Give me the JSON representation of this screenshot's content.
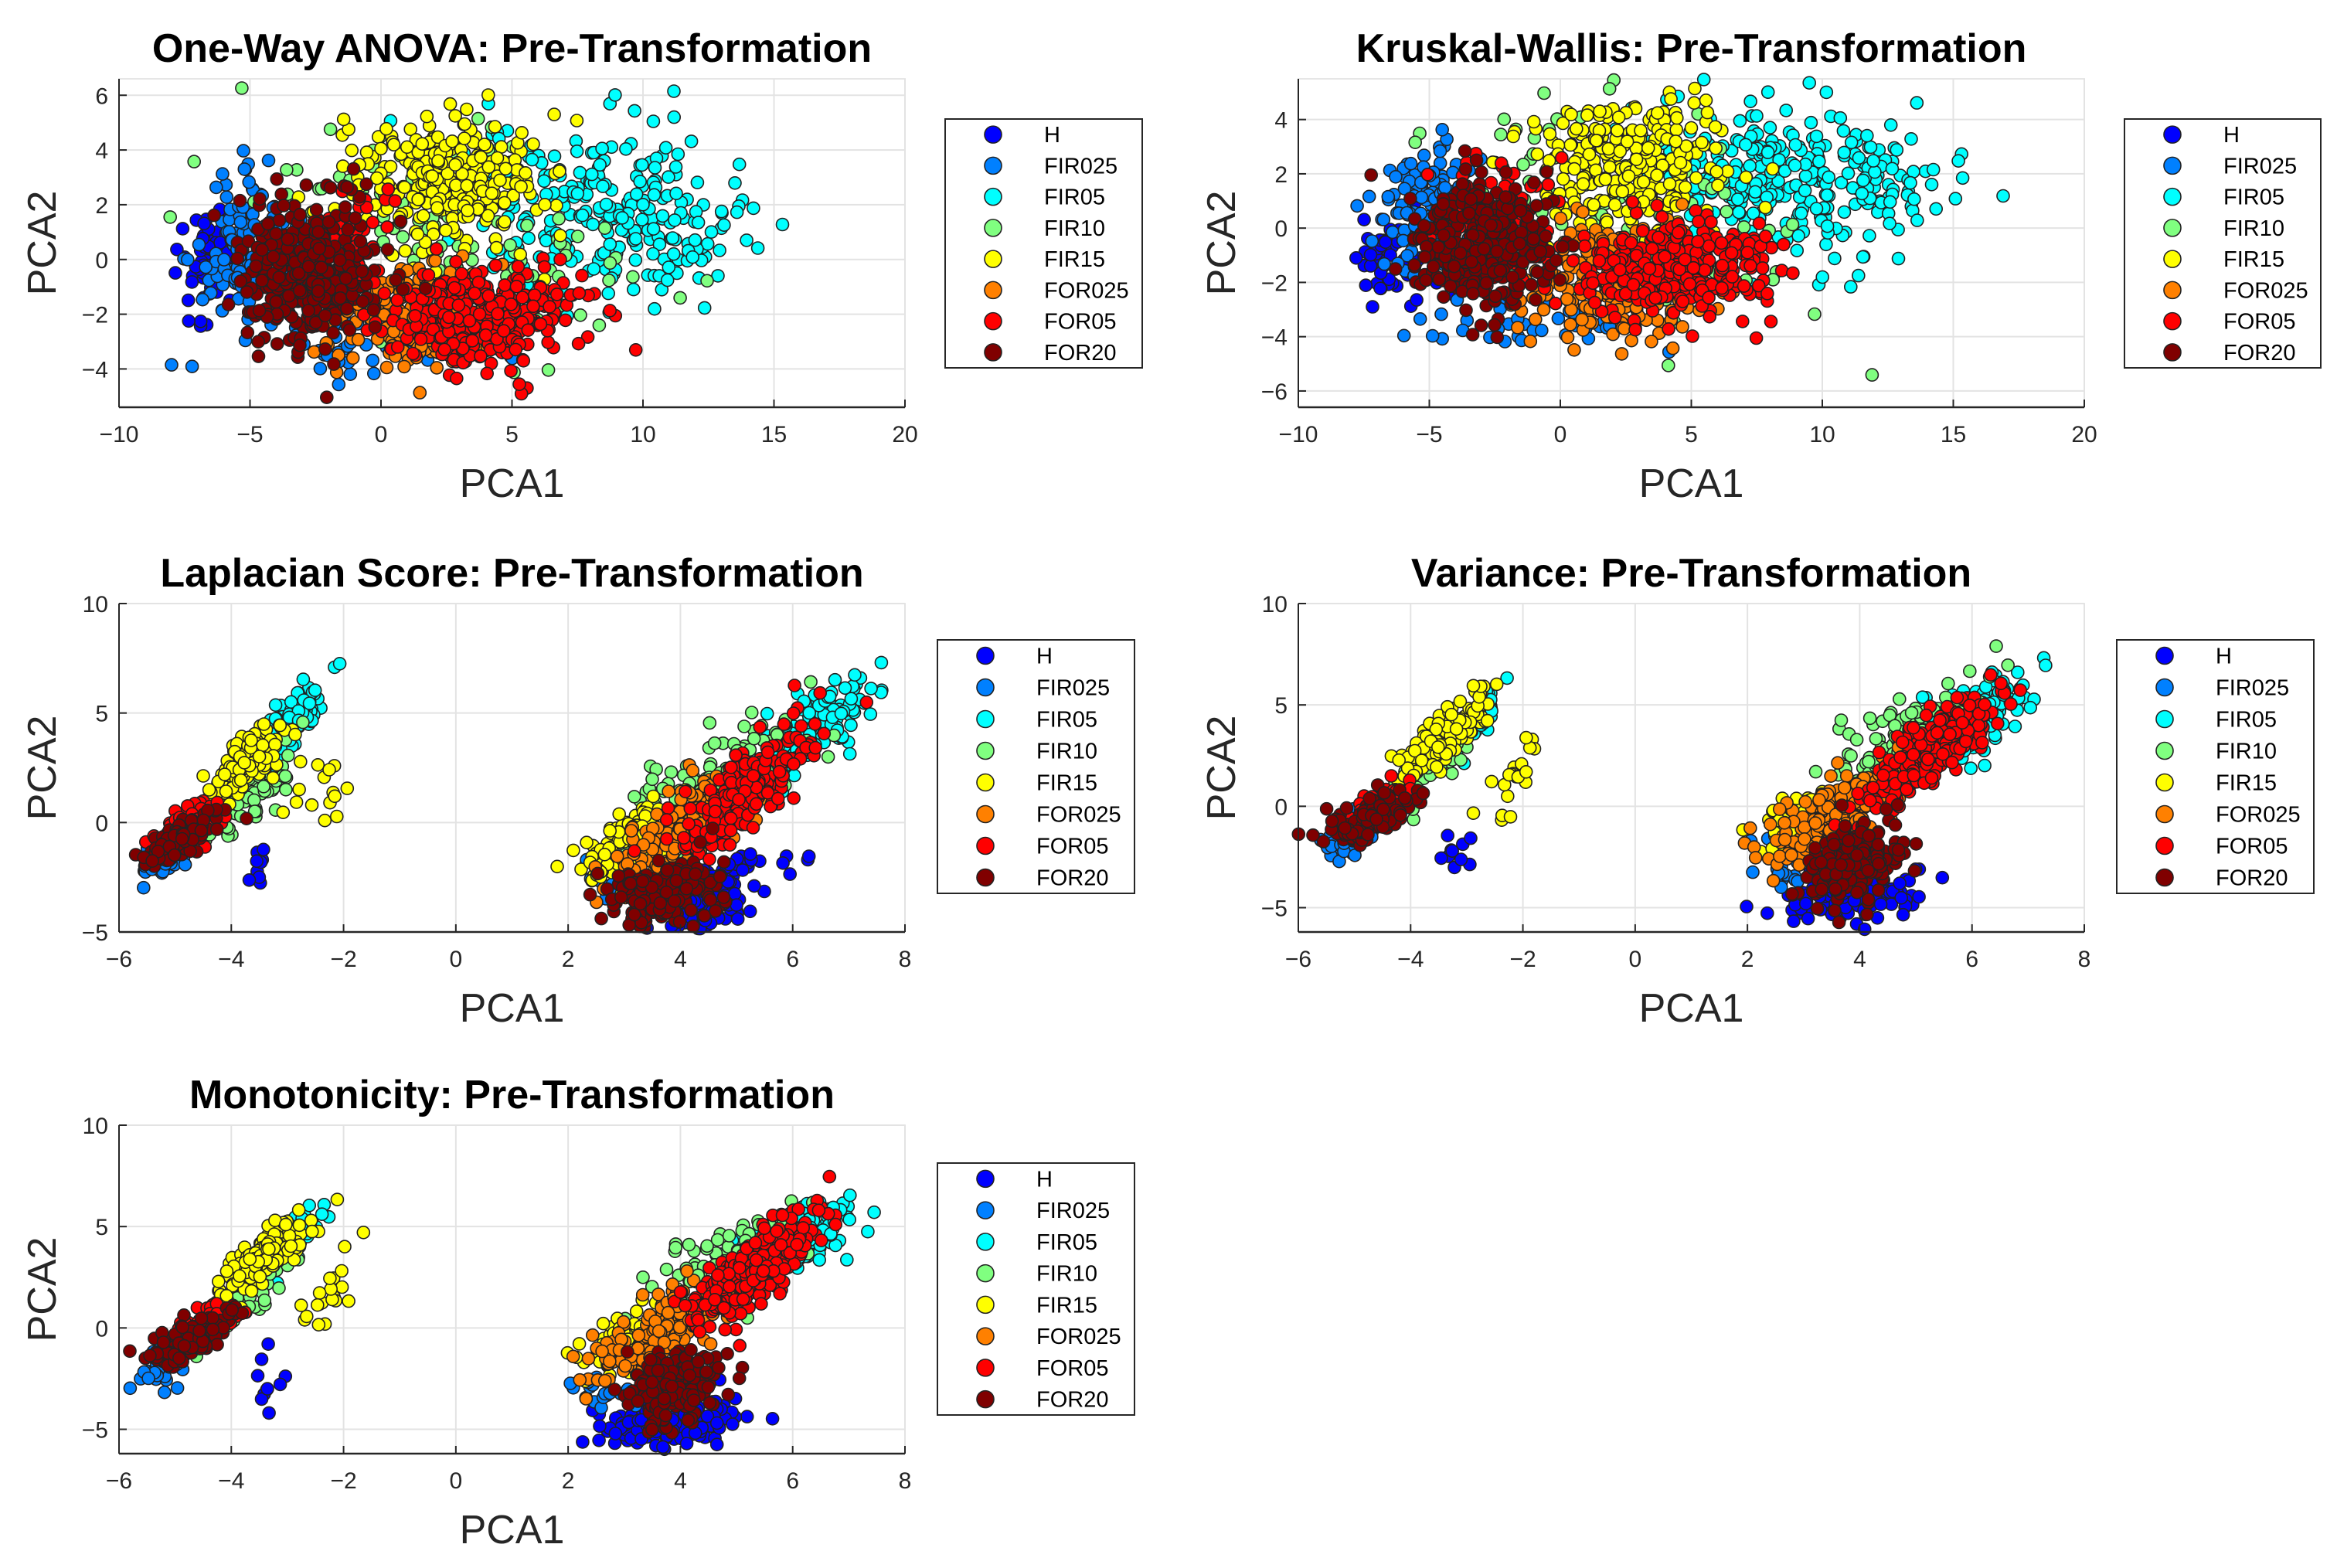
{
  "chart_data": {
    "type": "scatter",
    "legend_placement": "right-outside",
    "grid": true,
    "classes": [
      {
        "name": "H",
        "color": "#0000ff"
      },
      {
        "name": "FIR025",
        "color": "#0080ff"
      },
      {
        "name": "FIR05",
        "color": "#00ffff"
      },
      {
        "name": "FIR10",
        "color": "#80ff80"
      },
      {
        "name": "FIR15",
        "color": "#ffff00"
      },
      {
        "name": "FOR025",
        "color": "#ff8000"
      },
      {
        "name": "FOR05",
        "color": "#ff0000"
      },
      {
        "name": "FOR20",
        "color": "#800000"
      }
    ],
    "cluster_format": [
      "class_index",
      "mean_x",
      "mean_y",
      "sd_x",
      "sd_y",
      "correlation",
      "count"
    ],
    "charts": [
      {
        "title": "One-Way ANOVA: Pre-Transformation",
        "xlabel": "PCA1",
        "ylabel": "PCA2",
        "xlim": [
          -10,
          20
        ],
        "ylim": [
          -5.4,
          6.6
        ],
        "xticks": [
          -10,
          -5,
          0,
          5,
          10,
          15,
          20
        ],
        "yticks": [
          -4,
          -2,
          0,
          2,
          4,
          6
        ],
        "clusters": [
          [
            0,
            -6.6,
            -0.6,
            0.6,
            1.1,
            0,
            60
          ],
          [
            1,
            -5.2,
            0.6,
            1.0,
            1.4,
            0,
            120
          ],
          [
            1,
            -1.5,
            -3.3,
            2.5,
            0.5,
            0,
            40
          ],
          [
            2,
            9.2,
            1.6,
            2.3,
            1.5,
            0,
            220
          ],
          [
            2,
            5.0,
            2.5,
            1.5,
            1.5,
            0,
            60
          ],
          [
            3,
            2.5,
            0.5,
            3.5,
            2.2,
            -0.3,
            120
          ],
          [
            4,
            2.6,
            2.9,
            1.8,
            1.2,
            0,
            280
          ],
          [
            5,
            1.0,
            -2.0,
            1.7,
            1.1,
            0,
            200
          ],
          [
            6,
            4.2,
            -2.0,
            1.9,
            0.9,
            0,
            300
          ],
          [
            6,
            -1.0,
            0.5,
            0.8,
            1.2,
            0,
            40
          ],
          [
            7,
            -2.8,
            -0.5,
            1.3,
            1.3,
            0,
            360
          ]
        ]
      },
      {
        "title": "Kruskal-Wallis: Pre-Transformation",
        "xlabel": "PCA1",
        "ylabel": "PCA2",
        "xlim": [
          -10,
          20
        ],
        "ylim": [
          -6.6,
          5.5
        ],
        "xticks": [
          -10,
          -5,
          0,
          5,
          10,
          15,
          20
        ],
        "yticks": [
          -6,
          -4,
          -2,
          0,
          2,
          4
        ],
        "clusters": [
          [
            0,
            -6.2,
            -1.0,
            0.8,
            1.0,
            0,
            60
          ],
          [
            1,
            -5.2,
            0.8,
            1.0,
            1.2,
            0,
            120
          ],
          [
            1,
            -1.0,
            -3.6,
            2.5,
            0.5,
            0,
            40
          ],
          [
            2,
            9.5,
            1.8,
            2.4,
            1.3,
            0,
            240
          ],
          [
            2,
            5.5,
            2.5,
            1.5,
            1.2,
            0,
            60
          ],
          [
            3,
            2.5,
            0.5,
            3.5,
            2.0,
            -0.3,
            110
          ],
          [
            4,
            2.8,
            2.3,
            1.8,
            1.2,
            0,
            280
          ],
          [
            5,
            2.0,
            -2.0,
            1.8,
            1.1,
            0,
            200
          ],
          [
            6,
            4.5,
            -1.5,
            1.9,
            0.9,
            0,
            300
          ],
          [
            6,
            -2.5,
            0.5,
            1.0,
            1.2,
            0,
            80
          ],
          [
            7,
            -3.0,
            -0.6,
            1.3,
            1.1,
            0,
            360
          ]
        ]
      },
      {
        "title": "Laplacian Score: Pre-Transformation",
        "xlabel": "PCA1",
        "ylabel": "PCA2",
        "xlim": [
          -6,
          8
        ],
        "ylim": [
          -5,
          10
        ],
        "xticks": [
          -6,
          -4,
          -2,
          0,
          2,
          4,
          6,
          8
        ],
        "yticks": [
          -5,
          0,
          5,
          10
        ],
        "clusters": [
          [
            1,
            -5.2,
            -1.5,
            0.25,
            0.6,
            0.6,
            60
          ],
          [
            0,
            -3.5,
            -2.0,
            0.1,
            0.5,
            0,
            10
          ],
          [
            2,
            -3.0,
            4.4,
            0.3,
            1.0,
            0.85,
            110
          ],
          [
            3,
            -3.6,
            1.3,
            0.4,
            1.2,
            0.8,
            70
          ],
          [
            4,
            -3.8,
            2.5,
            0.35,
            1.0,
            0.8,
            130
          ],
          [
            4,
            -2.5,
            1.5,
            0.3,
            1.0,
            0.5,
            15
          ],
          [
            6,
            -4.7,
            0.0,
            0.3,
            0.6,
            0.6,
            60
          ],
          [
            7,
            -4.9,
            -0.7,
            0.3,
            0.6,
            0.7,
            110
          ],
          [
            0,
            4.6,
            -3.4,
            0.6,
            1.0,
            0.6,
            140
          ],
          [
            1,
            2.5,
            -2.6,
            0.3,
            0.5,
            0,
            15
          ],
          [
            2,
            6.3,
            4.0,
            0.5,
            1.2,
            0.7,
            150
          ],
          [
            3,
            4.5,
            2.0,
            0.8,
            1.5,
            0.7,
            110
          ],
          [
            4,
            3.1,
            -0.9,
            0.4,
            1.0,
            0.6,
            110
          ],
          [
            5,
            4.2,
            0.0,
            0.6,
            1.4,
            0.7,
            160
          ],
          [
            6,
            5.2,
            1.5,
            0.6,
            1.5,
            0.8,
            220
          ],
          [
            7,
            3.7,
            -3.2,
            0.5,
            0.8,
            0.2,
            180
          ]
        ]
      },
      {
        "title": "Variance: Pre-Transformation",
        "xlabel": "PCA1",
        "ylabel": "PCA2",
        "xlim": [
          -6,
          8
        ],
        "ylim": [
          -6.2,
          10
        ],
        "xticks": [
          -6,
          -4,
          -2,
          0,
          2,
          4,
          6,
          8
        ],
        "yticks": [
          -5,
          0,
          5,
          10
        ],
        "clusters": [
          [
            1,
            -5.1,
            -1.5,
            0.25,
            0.6,
            0.6,
            60
          ],
          [
            0,
            -3.2,
            -2.5,
            0.15,
            0.6,
            0,
            10
          ],
          [
            2,
            -2.9,
            4.3,
            0.25,
            0.8,
            0.8,
            60
          ],
          [
            3,
            -3.8,
            1.5,
            0.4,
            1.0,
            0.8,
            60
          ],
          [
            4,
            -3.4,
            3.5,
            0.4,
            1.0,
            0.8,
            150
          ],
          [
            4,
            -2.2,
            1.5,
            0.3,
            1.0,
            0.6,
            20
          ],
          [
            6,
            -4.6,
            0.0,
            0.3,
            0.6,
            0.6,
            60
          ],
          [
            7,
            -4.7,
            -0.5,
            0.35,
            0.7,
            0.7,
            120
          ],
          [
            0,
            3.8,
            -4.5,
            0.6,
            0.7,
            0.2,
            150
          ],
          [
            1,
            2.6,
            -3.0,
            0.3,
            0.6,
            0,
            20
          ],
          [
            2,
            6.0,
            4.3,
            0.5,
            1.0,
            0.6,
            150
          ],
          [
            3,
            4.8,
            3.3,
            0.7,
            1.3,
            0.7,
            110
          ],
          [
            4,
            3.0,
            -0.5,
            0.4,
            0.8,
            0.5,
            60
          ],
          [
            5,
            3.6,
            -0.3,
            0.6,
            1.3,
            0.7,
            180
          ],
          [
            6,
            5.3,
            2.8,
            0.6,
            1.4,
            0.8,
            240
          ],
          [
            7,
            3.9,
            -2.8,
            0.45,
            0.9,
            0.2,
            180
          ]
        ]
      },
      {
        "title": "Monotonicity: Pre-Transformation",
        "xlabel": "PCA1",
        "ylabel": "PCA2",
        "xlim": [
          -6,
          8
        ],
        "ylim": [
          -6.2,
          10
        ],
        "xticks": [
          -6,
          -4,
          -2,
          0,
          2,
          4,
          6,
          8
        ],
        "yticks": [
          -5,
          0,
          5,
          10
        ],
        "clusters": [
          [
            1,
            -5.1,
            -1.5,
            0.25,
            0.6,
            0.6,
            60
          ],
          [
            0,
            -3.3,
            -2.5,
            0.15,
            0.7,
            0,
            10
          ],
          [
            2,
            -2.9,
            4.3,
            0.25,
            0.8,
            0.8,
            60
          ],
          [
            3,
            -3.8,
            1.5,
            0.4,
            1.0,
            0.8,
            60
          ],
          [
            4,
            -3.4,
            3.5,
            0.4,
            1.0,
            0.8,
            150
          ],
          [
            4,
            -2.2,
            1.5,
            0.3,
            1.0,
            0.6,
            20
          ],
          [
            6,
            -4.6,
            0.0,
            0.3,
            0.6,
            0.6,
            60
          ],
          [
            7,
            -4.7,
            -0.5,
            0.35,
            0.7,
            0.7,
            120
          ],
          [
            0,
            3.8,
            -4.6,
            0.6,
            0.7,
            0.2,
            150
          ],
          [
            1,
            2.6,
            -3.0,
            0.3,
            0.6,
            0,
            20
          ],
          [
            2,
            6.0,
            4.3,
            0.5,
            1.0,
            0.6,
            150
          ],
          [
            3,
            4.8,
            3.3,
            0.7,
            1.3,
            0.7,
            110
          ],
          [
            4,
            3.0,
            -0.5,
            0.4,
            0.8,
            0.5,
            60
          ],
          [
            5,
            3.6,
            -0.3,
            0.6,
            1.3,
            0.7,
            180
          ],
          [
            6,
            5.3,
            2.8,
            0.6,
            1.4,
            0.8,
            240
          ],
          [
            7,
            3.9,
            -2.9,
            0.45,
            0.9,
            0.2,
            180
          ]
        ]
      }
    ]
  }
}
